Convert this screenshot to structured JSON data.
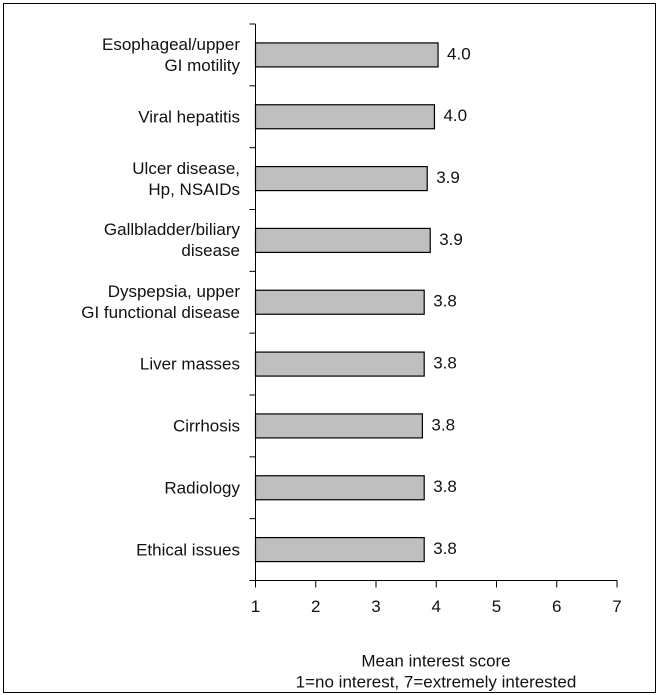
{
  "chart_data": {
    "type": "bar",
    "orientation": "horizontal",
    "categories": [
      "Esophageal/upper\nGI motility",
      "Viral hepatitis",
      "Ulcer disease,\nHp, NSAIDs",
      "Gallbladder/biliary\ndisease",
      "Dyspepsia, upper\nGI functional disease",
      "Liver masses",
      "Cirrhosis",
      "Radiology",
      "Ethical issues"
    ],
    "values": [
      4.03,
      3.97,
      3.85,
      3.9,
      3.8,
      3.8,
      3.77,
      3.8,
      3.8
    ],
    "value_labels": [
      "4.0",
      "4.0",
      "3.9",
      "3.9",
      "3.8",
      "3.8",
      "3.8",
      "3.8",
      "3.8"
    ],
    "color": "#bfbfbf",
    "xlim": [
      1,
      7
    ],
    "xticks": [
      1,
      2,
      3,
      4,
      5,
      6,
      7
    ],
    "x_label": "Mean interest score",
    "x_label_note": "1=no interest, 7=extremely interested"
  }
}
